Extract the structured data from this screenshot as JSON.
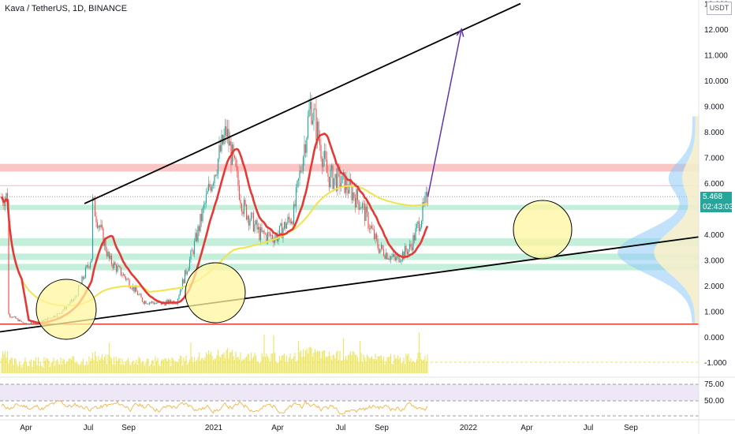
{
  "header": {
    "title": "Kava / TetherUS, 1D, BINANCE",
    "unit": "USDT"
  },
  "last_price": {
    "value": "5.468",
    "countdown": "02:43:03"
  },
  "colors": {
    "up": "#26a69a",
    "down": "#ef5350",
    "ma_fast": "#e53935",
    "ma_slow": "#f2e34a",
    "circle_fill": "#fff59d",
    "arrow": "#5e35b1",
    "resistance_zone": "#f8b7b7",
    "support_zone": "#b9ecd5",
    "volume": "#ece56a",
    "rsi_line": "#f4b34a",
    "rsi_band": "#ede7f6"
  },
  "chart_data": [
    {
      "type": "line",
      "title": "Kava / TetherUS, 1D, BINANCE",
      "y_axis_labels": [
        "0.000",
        "1.000",
        "2.000",
        "3.000",
        "4.000",
        "5.000",
        "6.000",
        "7.000",
        "8.000",
        "9.000",
        "10.000",
        "11.000",
        "12.000",
        "13.000"
      ],
      "x_axis_labels": [
        "Apr",
        "Jul",
        "Sep",
        "2021",
        "Apr",
        "Jul",
        "Sep",
        "2022",
        "Apr",
        "Jul",
        "Sep"
      ],
      "ylim": [
        0,
        13
      ],
      "series": [
        {
          "x": [
            "2020-03",
            "2020-04",
            "2020-05",
            "2020-06",
            "2020-07",
            "2020-08",
            "2020-08",
            "2020-09",
            "2020-10",
            "2020-11",
            "2020-12",
            "2021-01",
            "2021-02",
            "2021-03",
            "2021-04",
            "2021-05",
            "2021-06",
            "2021-07",
            "2021-08",
            "2021-09",
            "2021-10",
            "2021-11",
            "2021-12",
            "2022-01",
            "2022-02",
            "2022-03",
            "2022-04"
          ],
          "y": [
            0.9,
            0.5,
            0.6,
            0.9,
            1.5,
            3.2,
            5.3,
            3.0,
            2.3,
            1.4,
            1.3,
            1.4,
            3.5,
            5.8,
            8.0,
            5.1,
            4.0,
            3.9,
            4.8,
            9.1,
            6.3,
            6.0,
            5.2,
            3.5,
            3.0,
            3.5,
            5.47
          ]
        }
      ],
      "annotations": {
        "upper_trendline": [
          [
            "2020-08-01",
            5.2
          ],
          [
            "2022-09-30",
            13.0
          ]
        ],
        "lower_trendline": [
          [
            "2020-03-01",
            0.2
          ],
          [
            "2022-09-30",
            3.9
          ]
        ],
        "target_arrow": [
          [
            "2022-04-15",
            5.47
          ],
          [
            "2022-06-15",
            12.0
          ]
        ],
        "horizontal_line": 0.5,
        "resistance_zone": [
          6.45,
          6.75
        ],
        "support_zones": [
          [
            4.95,
            5.15
          ],
          [
            3.55,
            3.85
          ],
          [
            3.0,
            3.25
          ],
          [
            2.6,
            2.85
          ]
        ]
      }
    },
    {
      "type": "bar",
      "title": "",
      "values": [],
      "ylim": [
        -1.2,
        0.6
      ]
    },
    {
      "type": "line",
      "title": "",
      "y_axis_labels": [
        "75.00",
        "50.00"
      ],
      "ylim": [
        25,
        85
      ]
    }
  ]
}
